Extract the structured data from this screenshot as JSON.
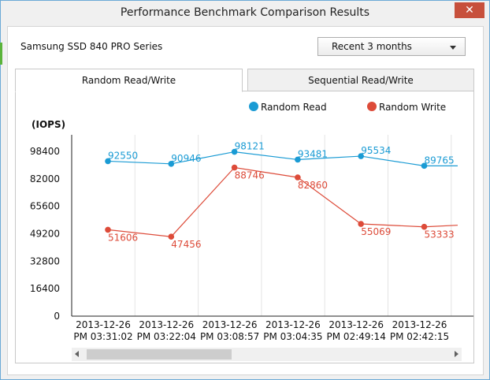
{
  "window": {
    "title": "Performance Benchmark Comparison Results",
    "close_label": "✕"
  },
  "device": {
    "name": "Samsung SSD 840 PRO Series"
  },
  "range": {
    "selected": "Recent 3 months"
  },
  "tabs": [
    {
      "label": "Random Read/Write",
      "active": true
    },
    {
      "label": "Sequential Read/Write",
      "active": false
    }
  ],
  "colors": {
    "read": "#1a9bd4",
    "write": "#dd4b39",
    "grid": "#e4e4e4",
    "axis": "#222222"
  },
  "chart_data": {
    "type": "line",
    "ylabel": "(IOPS)",
    "yticks": [
      0,
      16400,
      32800,
      49200,
      65600,
      82000,
      98400
    ],
    "ylim": [
      0,
      114800
    ],
    "x": [
      [
        "2013-12-26",
        "PM 03:31:02"
      ],
      [
        "2013-12-26",
        "PM 03:22:04"
      ],
      [
        "2013-12-26",
        "PM 03:08:57"
      ],
      [
        "2013-12-26",
        "PM 03:04:35"
      ],
      [
        "2013-12-26",
        "PM 02:49:14"
      ],
      [
        "2013-12-26",
        "PM 02:42:15"
      ],
      [
        "2",
        ""
      ]
    ],
    "legend_position": "top-right",
    "grid": "vertical",
    "series": [
      {
        "name": "Random Read",
        "color": "#1a9bd4",
        "values": [
          92550,
          90946,
          98121,
          93481,
          95534,
          89765,
          89765
        ],
        "label_side": "above"
      },
      {
        "name": "Random Write",
        "color": "#dd4b39",
        "values": [
          51606,
          47456,
          88746,
          82860,
          55069,
          53333,
          54300
        ],
        "label_side": "below"
      }
    ]
  }
}
